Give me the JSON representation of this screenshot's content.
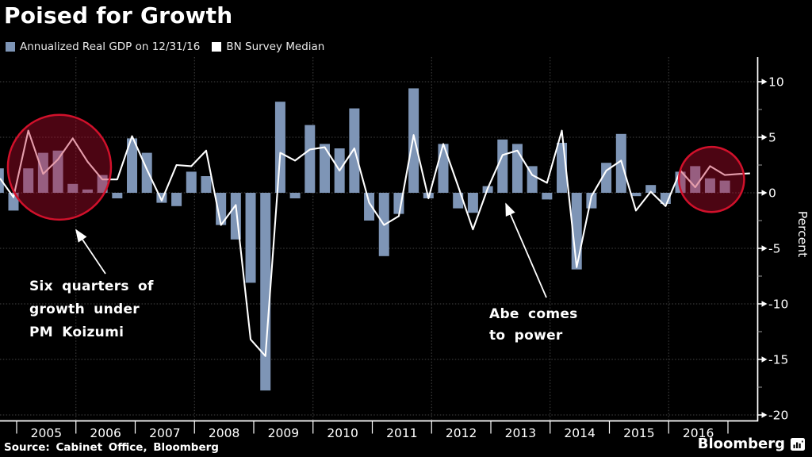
{
  "title": "Poised for Growth",
  "legend": {
    "gdp": {
      "label": "Annualized Real GDP on 12/31/16",
      "color": "#7e95b6"
    },
    "survey": {
      "label": "BN Survey Median",
      "color": "#ffffff"
    }
  },
  "annotations": {
    "koizumi": {
      "lines": [
        "Six quarters of",
        "growth under",
        "PM Koizumi"
      ]
    },
    "abe": {
      "lines": [
        "Abe comes",
        "to power"
      ]
    }
  },
  "footer": {
    "source": "Source: Cabinet Office, Bloomberg",
    "brand": "Bloomberg"
  },
  "y_axis": {
    "label": "Percent",
    "ticks": [
      10,
      5,
      0,
      -5,
      -10,
      -15,
      -20
    ],
    "minor_step": 2.5,
    "range": [
      -20,
      10.5
    ]
  },
  "x_axis": {
    "years": [
      "2005",
      "2006",
      "2007",
      "2008",
      "2009",
      "2010",
      "2011",
      "2012",
      "2013",
      "2014",
      "2015",
      "2016"
    ]
  },
  "chart_data": {
    "type": "bar+line",
    "title": "Poised for Growth",
    "ylabel": "Percent",
    "ylim": [
      -20,
      10.5
    ],
    "grid": "dotted, horizontal every 5, vertical at even years",
    "legend_position": "top-left",
    "quarters": [
      "2004 Q3",
      "2004 Q4",
      "2005 Q1",
      "2005 Q2",
      "2005 Q3",
      "2005 Q4",
      "2006 Q1",
      "2006 Q2",
      "2006 Q3",
      "2006 Q4",
      "2007 Q1",
      "2007 Q2",
      "2007 Q3",
      "2007 Q4",
      "2008 Q1",
      "2008 Q2",
      "2008 Q3",
      "2008 Q4",
      "2009 Q1",
      "2009 Q2",
      "2009 Q3",
      "2009 Q4",
      "2010 Q1",
      "2010 Q2",
      "2010 Q3",
      "2010 Q4",
      "2011 Q1",
      "2011 Q2",
      "2011 Q3",
      "2011 Q4",
      "2012 Q1",
      "2012 Q2",
      "2012 Q3",
      "2012 Q4",
      "2013 Q1",
      "2013 Q2",
      "2013 Q3",
      "2013 Q4",
      "2014 Q1",
      "2014 Q2",
      "2014 Q3",
      "2014 Q4",
      "2015 Q1",
      "2015 Q2",
      "2015 Q3",
      "2015 Q4",
      "2016 Q1",
      "2016 Q2",
      "2016 Q3",
      "2016 Q4",
      "2017 Q1"
    ],
    "series": [
      {
        "name": "Annualized Real GDP on 12/31/16",
        "type": "bar",
        "color": "#7e95b6",
        "values": [
          2.2,
          -1.6,
          2.2,
          3.6,
          3.8,
          0.8,
          0.3,
          1.6,
          -0.5,
          4.9,
          3.6,
          -0.9,
          -1.2,
          1.9,
          1.5,
          -2.9,
          -4.2,
          -8.1,
          -17.8,
          8.2,
          -0.5,
          6.1,
          4.4,
          4.0,
          7.6,
          -2.5,
          -5.7,
          -1.9,
          9.4,
          -0.5,
          4.4,
          -1.4,
          -1.8,
          0.6,
          4.8,
          4.4,
          2.4,
          -0.6,
          4.5,
          -6.9,
          -1.4,
          2.7,
          5.3,
          -0.3,
          0.7,
          -1.0,
          1.9,
          2.4,
          1.3,
          1.1,
          null
        ]
      },
      {
        "name": "BN Survey Median",
        "type": "line",
        "color": "#ffffff",
        "values": [
          1.3,
          -0.4,
          5.6,
          1.7,
          3.0,
          4.9,
          2.8,
          1.2,
          1.2,
          5.1,
          2.1,
          -0.7,
          2.5,
          2.4,
          3.8,
          -2.9,
          -1.1,
          -13.2,
          -14.7,
          3.6,
          2.9,
          3.9,
          4.1,
          2.0,
          4.0,
          -0.9,
          -2.9,
          -2.1,
          5.2,
          -0.5,
          4.4,
          0.6,
          -3.3,
          0.4,
          3.4,
          3.8,
          1.6,
          0.9,
          5.6,
          -6.7,
          -0.3,
          2.0,
          2.9,
          -1.6,
          0.1,
          -1.2,
          2.0,
          0.5,
          2.4,
          1.6,
          1.7
        ]
      }
    ],
    "highlights": [
      {
        "name": "koizumi-growth-highlight",
        "quarter_center": 4.1,
        "value_center": 2.3,
        "radius_quarters": 3.48,
        "radius_units": 4.72,
        "stroke": "#d1112b",
        "fill": "rgba(190,12,48,0.40)"
      },
      {
        "name": "recent-growth-highlight",
        "quarter_center": 48.1,
        "value_center": 1.2,
        "radius_quarters": 2.2,
        "radius_units": 2.93,
        "stroke": "#d1112b",
        "fill": "rgba(190,12,48,0.40)"
      }
    ]
  }
}
